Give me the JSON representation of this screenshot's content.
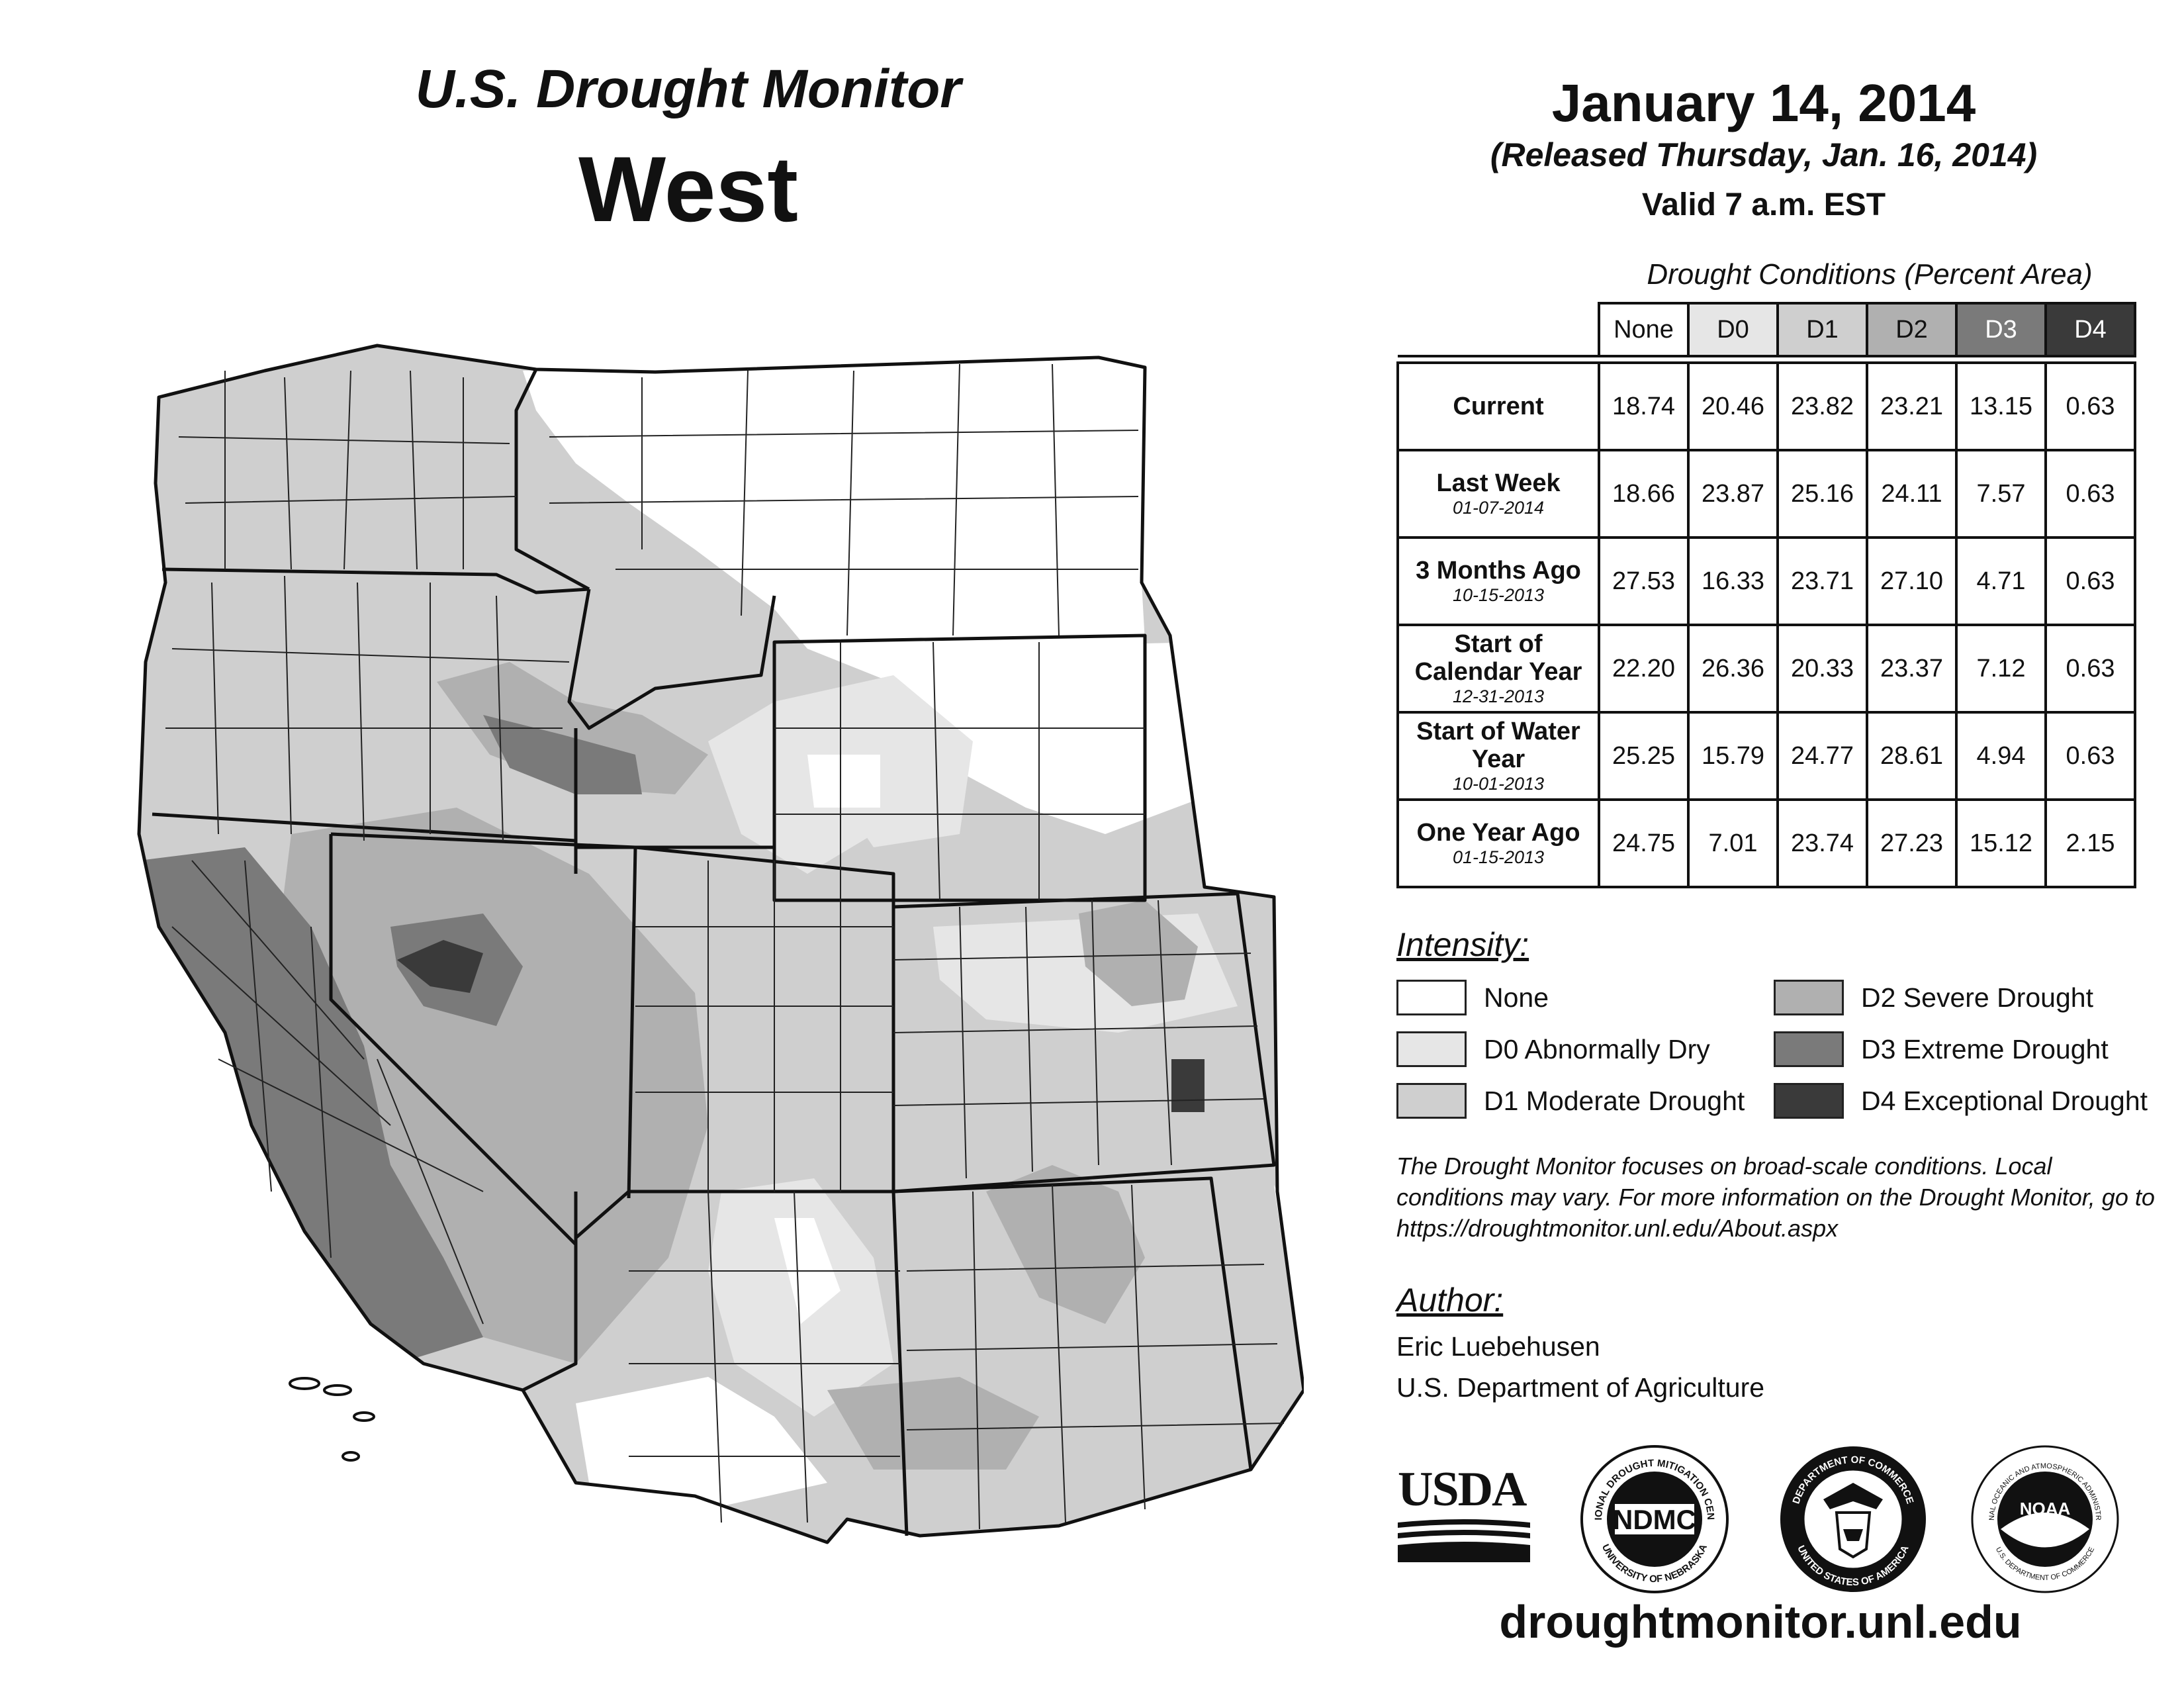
{
  "header": {
    "title": "U.S. Drought Monitor",
    "region": "West",
    "date": "January 14, 2014",
    "released": "(Released Thursday, Jan. 16, 2014)",
    "valid": "Valid 7 a.m. EST"
  },
  "table": {
    "caption": "Drought Conditions (Percent Area)",
    "columns": [
      "None",
      "D0",
      "D1",
      "D2",
      "D3",
      "D4"
    ],
    "column_colors": [
      "#ffffff",
      "#e6e6e6",
      "#cfcfcf",
      "#b0b0b0",
      "#7a7a7a",
      "#3a3a3a"
    ],
    "column_text_colors": [
      "#111111",
      "#111111",
      "#111111",
      "#111111",
      "#ffffff",
      "#ffffff"
    ],
    "rows": [
      {
        "label": "Current",
        "sub": "",
        "values": [
          "18.74",
          "20.46",
          "23.82",
          "23.21",
          "13.15",
          "0.63"
        ]
      },
      {
        "label": "Last Week",
        "sub": "01-07-2014",
        "values": [
          "18.66",
          "23.87",
          "25.16",
          "24.11",
          "7.57",
          "0.63"
        ]
      },
      {
        "label": "3 Months Ago",
        "sub": "10-15-2013",
        "values": [
          "27.53",
          "16.33",
          "23.71",
          "27.10",
          "4.71",
          "0.63"
        ]
      },
      {
        "label": "Start of Calendar Year",
        "sub": "12-31-2013",
        "values": [
          "22.20",
          "26.36",
          "20.33",
          "23.37",
          "7.12",
          "0.63"
        ]
      },
      {
        "label": "Start of Water Year",
        "sub": "10-01-2013",
        "values": [
          "25.25",
          "15.79",
          "24.77",
          "28.61",
          "4.94",
          "0.63"
        ]
      },
      {
        "label": "One Year Ago",
        "sub": "01-15-2013",
        "values": [
          "24.75",
          "7.01",
          "23.74",
          "27.23",
          "15.12",
          "2.15"
        ]
      }
    ]
  },
  "legend": {
    "title": "Intensity:",
    "items": [
      {
        "label": "None",
        "color": "#ffffff"
      },
      {
        "label": "D0 Abnormally Dry",
        "color": "#e6e6e6"
      },
      {
        "label": "D1 Moderate Drought",
        "color": "#cfcfcf"
      },
      {
        "label": "D2 Severe Drought",
        "color": "#b0b0b0"
      },
      {
        "label": "D3 Extreme Drought",
        "color": "#7a7a7a"
      },
      {
        "label": "D4 Exceptional Drought",
        "color": "#3a3a3a"
      }
    ]
  },
  "note": "The Drought Monitor focuses on broad-scale conditions. Local conditions may vary. For more information on the Drought Monitor, go to https://droughtmonitor.unl.edu/About.aspx",
  "author": {
    "heading": "Author:",
    "name": "Eric Luebehusen",
    "org": "U.S. Department of Agriculture"
  },
  "logos": {
    "usda": "USDA",
    "ndmc": "NDMC",
    "ndmc_ring_top": "NATIONAL DROUGHT MITIGATION CENTER",
    "ndmc_ring_bottom": "UNIVERSITY OF NEBRASKA",
    "doc_ring_top": "DEPARTMENT OF COMMERCE",
    "doc_ring_bottom": "UNITED STATES OF AMERICA",
    "noaa": "NOAA",
    "noaa_ring_top": "NATIONAL OCEANIC AND ATMOSPHERIC ADMINISTRATION",
    "noaa_ring_bottom": "U.S. DEPARTMENT OF COMMERCE"
  },
  "footer_url": "droughtmonitor.unl.edu"
}
